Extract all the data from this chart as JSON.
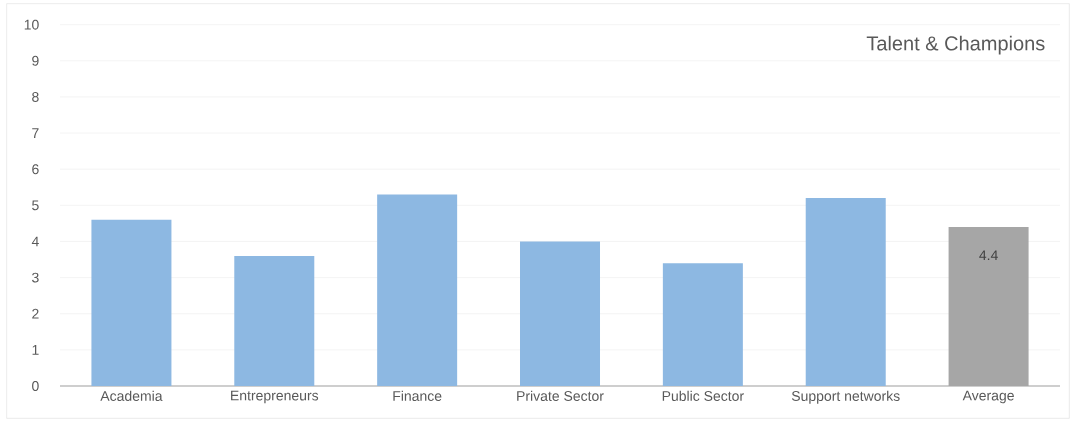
{
  "chart_data": {
    "type": "bar",
    "title": "Talent & Champions",
    "categories": [
      "Academia",
      "Entrepreneurs",
      "Finance",
      "Private Sector",
      "Public Sector",
      "Support networks",
      "Average"
    ],
    "values": [
      4.6,
      3.6,
      5.3,
      4.0,
      3.4,
      5.2,
      4.4
    ],
    "colors": [
      "#8db8e2",
      "#8db8e2",
      "#8db8e2",
      "#8db8e2",
      "#8db8e2",
      "#8db8e2",
      "#a6a6a6"
    ],
    "value_labels": [
      null,
      null,
      null,
      null,
      null,
      null,
      "4.4"
    ],
    "ylim": [
      0,
      10
    ],
    "yticks": [
      0,
      1,
      2,
      3,
      4,
      5,
      6,
      7,
      8,
      9,
      10
    ],
    "grid": "y"
  }
}
